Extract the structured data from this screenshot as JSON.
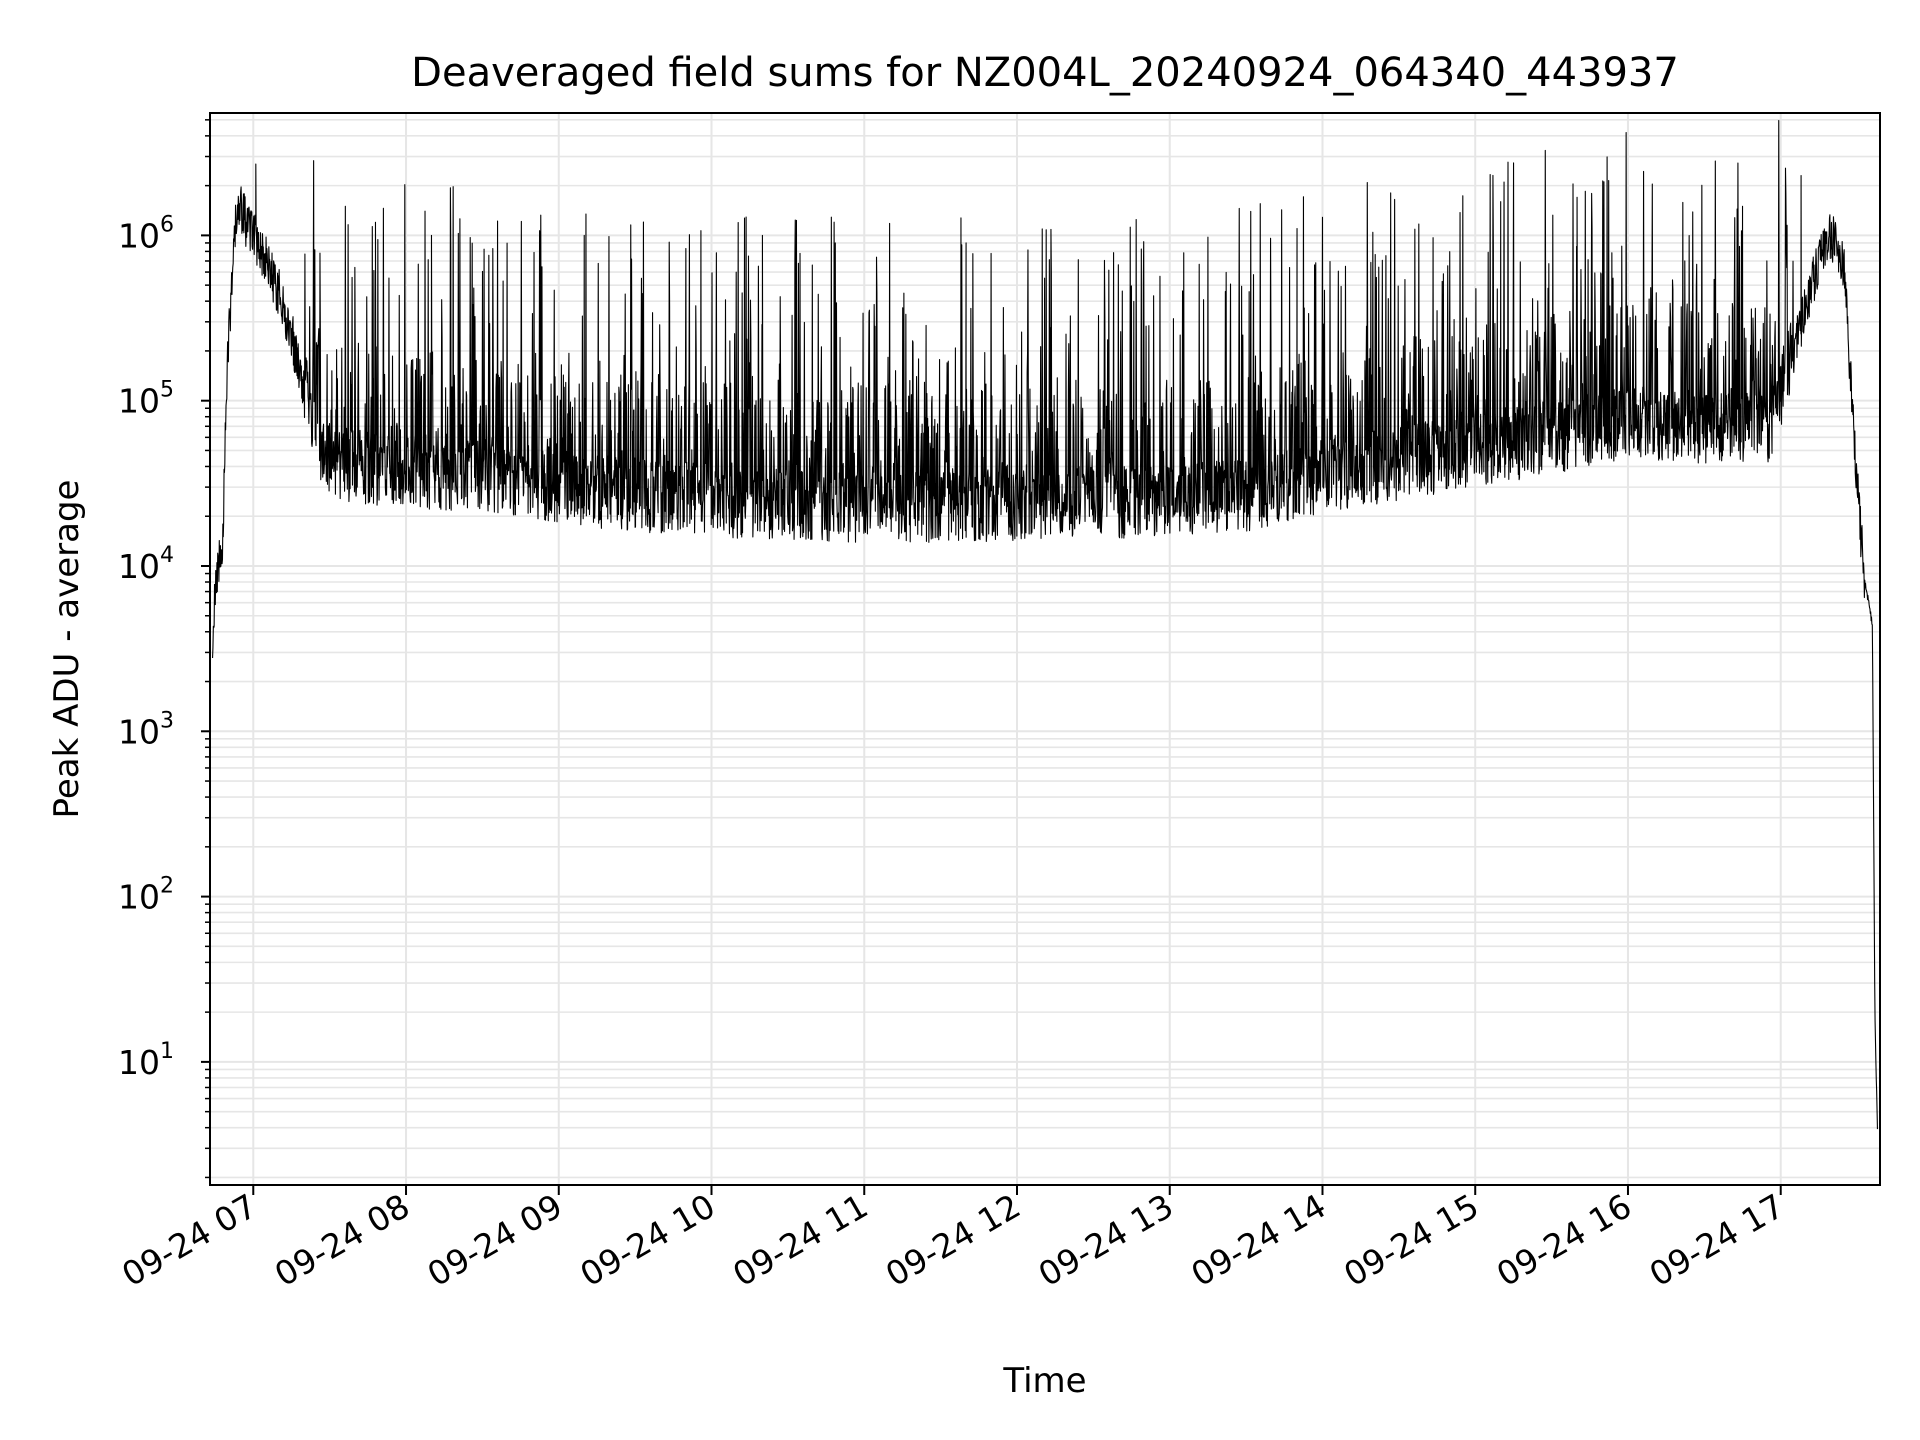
{
  "chart_data": {
    "type": "line",
    "title": "Deaveraged field sums for NZ004L_20240924_064340_443937",
    "xlabel": "Time",
    "ylabel": "Peak ADU - average",
    "yscale": "log",
    "grid": true,
    "grid_minor": true,
    "xlim": [
      "2024-09-24 06:43",
      "2024-09-24 17:39"
    ],
    "ylim": [
      1.8,
      5500000
    ],
    "x_ticks": [
      "09-24 07",
      "09-24 08",
      "09-24 09",
      "09-24 10",
      "09-24 11",
      "09-24 12",
      "09-24 13",
      "09-24 14",
      "09-24 15",
      "09-24 16",
      "09-24 17"
    ],
    "y_ticks": [
      {
        "base": "10",
        "exp": "1",
        "value": 10
      },
      {
        "base": "10",
        "exp": "2",
        "value": 100
      },
      {
        "base": "10",
        "exp": "3",
        "value": 1000
      },
      {
        "base": "10",
        "exp": "4",
        "value": 10000
      },
      {
        "base": "10",
        "exp": "5",
        "value": 100000
      },
      {
        "base": "10",
        "exp": "6",
        "value": 1000000
      }
    ],
    "line_color": "#000000",
    "grid_color": "#e6e6e6",
    "series": [
      {
        "x": [
          "2024-09-24 06:44",
          "2024-09-24 06:45",
          "2024-09-24 06:48",
          "2024-09-24 06:50",
          "2024-09-24 06:53",
          "2024-09-24 06:55",
          "2024-09-24 06:57",
          "2024-09-24 07:00",
          "2024-09-24 07:05",
          "2024-09-24 07:10",
          "2024-09-24 07:15",
          "2024-09-24 07:20",
          "2024-09-24 07:25",
          "2024-09-24 07:30",
          "2024-09-24 07:40",
          "2024-09-24 08:00",
          "2024-09-24 08:30",
          "2024-09-24 09:00",
          "2024-09-24 09:30",
          "2024-09-24 10:00",
          "2024-09-24 10:30",
          "2024-09-24 11:00",
          "2024-09-24 11:30",
          "2024-09-24 12:00",
          "2024-09-24 12:30",
          "2024-09-24 13:00",
          "2024-09-24 13:30",
          "2024-09-24 14:00",
          "2024-09-24 14:30",
          "2024-09-24 15:00",
          "2024-09-24 15:30",
          "2024-09-24 16:00",
          "2024-09-24 16:30",
          "2024-09-24 16:55",
          "2024-09-24 17:05",
          "2024-09-24 17:15",
          "2024-09-24 17:20",
          "2024-09-24 17:25",
          "2024-09-24 17:30",
          "2024-09-24 17:33",
          "2024-09-24 17:36",
          "2024-09-24 17:37",
          "2024-09-24 17:38"
        ],
        "baseline": [
          2500,
          7000,
          15000,
          200000,
          1200000,
          1500000,
          1200000,
          1000000,
          700000,
          450000,
          250000,
          120000,
          60000,
          45000,
          40000,
          38000,
          35000,
          30000,
          27000,
          25000,
          24000,
          23000,
          23000,
          24000,
          25000,
          24000,
          27000,
          35000,
          42000,
          50000,
          60000,
          75000,
          70000,
          65000,
          200000,
          700000,
          1000000,
          600000,
          30000,
          8000,
          4500,
          20,
          3.8
        ],
        "spike_peaks": [
          {
            "x": "2024-09-24 07:01",
            "y": 2700000
          },
          {
            "x": "2024-09-24 07:48",
            "y": 1200000
          },
          {
            "x": "2024-09-24 08:10",
            "y": 1000000
          },
          {
            "x": "2024-09-24 09:10",
            "y": 1000000
          },
          {
            "x": "2024-09-24 10:20",
            "y": 1000000
          },
          {
            "x": "2024-09-24 11:40",
            "y": 900000
          },
          {
            "x": "2024-09-24 13:50",
            "y": 1100000
          },
          {
            "x": "2024-09-24 15:10",
            "y": 1600000
          },
          {
            "x": "2024-09-24 15:40",
            "y": 1700000
          },
          {
            "x": "2024-09-24 16:45",
            "y": 1500000
          },
          {
            "x": "2024-09-24 17:08",
            "y": 2300000
          }
        ]
      }
    ]
  }
}
